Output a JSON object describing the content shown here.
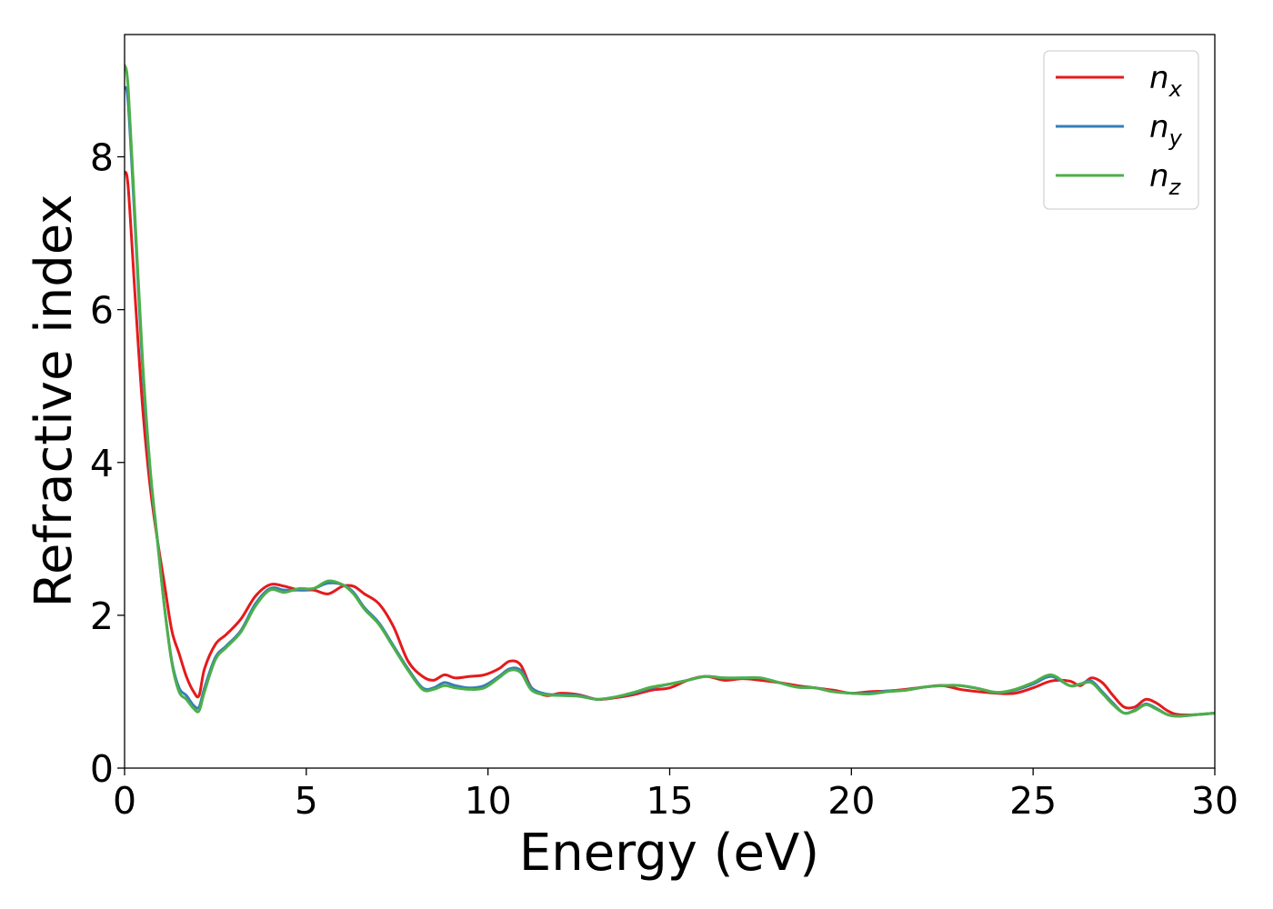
{
  "chart_data": {
    "type": "line",
    "xlabel": "Energy (eV)",
    "ylabel": "Refractive index",
    "xlim": [
      0,
      30
    ],
    "ylim": [
      0,
      9.6
    ],
    "xticks": [
      0,
      5,
      10,
      15,
      20,
      25,
      30
    ],
    "xtick_labels": [
      "0",
      "5",
      "10",
      "15",
      "20",
      "25",
      "30"
    ],
    "yticks": [
      0,
      2,
      4,
      6,
      8
    ],
    "ytick_labels": [
      "0",
      "2",
      "4",
      "6",
      "8"
    ],
    "grid": false,
    "legend_placement": "top-right",
    "series": [
      {
        "name": "n_x",
        "label_main": "n",
        "label_sub": "x",
        "color": "#e41a1c",
        "x": [
          0,
          0.1,
          0.3,
          0.5,
          0.7,
          0.9,
          1.1,
          1.3,
          1.5,
          1.7,
          1.9,
          2.05,
          2.2,
          2.5,
          2.8,
          3.2,
          3.6,
          4.0,
          4.4,
          4.8,
          5.2,
          5.6,
          6.0,
          6.3,
          6.6,
          7.0,
          7.4,
          7.8,
          8.2,
          8.5,
          8.8,
          9.1,
          9.5,
          9.9,
          10.3,
          10.6,
          10.9,
          11.2,
          11.6,
          12.0,
          12.5,
          13.0,
          13.5,
          14.0,
          14.5,
          15.0,
          15.5,
          16.0,
          16.5,
          17.0,
          17.5,
          18.0,
          18.5,
          19.0,
          19.5,
          20.0,
          20.5,
          21.0,
          21.5,
          22.0,
          22.5,
          23.0,
          23.5,
          24.0,
          24.5,
          25.0,
          25.5,
          26.0,
          26.3,
          26.6,
          26.9,
          27.2,
          27.5,
          27.8,
          28.1,
          28.4,
          28.7,
          29.0,
          29.5,
          30.0
        ],
        "y": [
          7.8,
          7.6,
          6.1,
          4.7,
          3.7,
          3.0,
          2.4,
          1.8,
          1.5,
          1.2,
          1.0,
          0.95,
          1.3,
          1.62,
          1.75,
          1.95,
          2.25,
          2.4,
          2.38,
          2.33,
          2.33,
          2.28,
          2.38,
          2.38,
          2.28,
          2.15,
          1.85,
          1.4,
          1.2,
          1.15,
          1.22,
          1.18,
          1.2,
          1.22,
          1.3,
          1.4,
          1.35,
          1.05,
          0.95,
          0.98,
          0.96,
          0.9,
          0.92,
          0.96,
          1.02,
          1.05,
          1.15,
          1.2,
          1.15,
          1.17,
          1.15,
          1.12,
          1.08,
          1.05,
          1.02,
          0.98,
          1.0,
          1.01,
          1.03,
          1.06,
          1.08,
          1.03,
          1.0,
          0.98,
          0.98,
          1.05,
          1.14,
          1.14,
          1.08,
          1.18,
          1.12,
          0.95,
          0.8,
          0.8,
          0.9,
          0.85,
          0.75,
          0.7,
          0.7,
          0.72
        ]
      },
      {
        "name": "n_y",
        "label_main": "n",
        "label_sub": "y",
        "color": "#377eb8",
        "x": [
          0,
          0.1,
          0.3,
          0.5,
          0.7,
          0.9,
          1.1,
          1.3,
          1.5,
          1.7,
          1.9,
          2.05,
          2.2,
          2.5,
          2.8,
          3.2,
          3.6,
          4.0,
          4.4,
          4.8,
          5.2,
          5.6,
          6.0,
          6.3,
          6.6,
          7.0,
          7.4,
          7.8,
          8.2,
          8.5,
          8.8,
          9.1,
          9.5,
          9.9,
          10.3,
          10.6,
          10.9,
          11.2,
          11.6,
          12.0,
          12.5,
          13.0,
          13.5,
          14.0,
          14.5,
          15.0,
          15.5,
          16.0,
          16.5,
          17.0,
          17.5,
          18.0,
          18.5,
          19.0,
          19.5,
          20.0,
          20.5,
          21.0,
          21.5,
          22.0,
          22.5,
          23.0,
          23.5,
          24.0,
          24.5,
          25.0,
          25.5,
          26.0,
          26.3,
          26.6,
          26.9,
          27.2,
          27.5,
          27.8,
          28.1,
          28.4,
          28.7,
          29.0,
          29.5,
          30.0
        ],
        "y": [
          8.9,
          8.7,
          7.0,
          5.2,
          3.9,
          3.0,
          2.1,
          1.4,
          1.05,
          0.95,
          0.82,
          0.8,
          1.05,
          1.45,
          1.6,
          1.8,
          2.15,
          2.35,
          2.33,
          2.33,
          2.35,
          2.42,
          2.4,
          2.3,
          2.1,
          1.9,
          1.6,
          1.3,
          1.05,
          1.05,
          1.12,
          1.08,
          1.05,
          1.08,
          1.2,
          1.3,
          1.28,
          1.05,
          0.97,
          0.96,
          0.95,
          0.9,
          0.93,
          0.98,
          1.05,
          1.1,
          1.15,
          1.2,
          1.18,
          1.18,
          1.18,
          1.12,
          1.06,
          1.05,
          1.0,
          0.98,
          0.98,
          1.01,
          1.02,
          1.06,
          1.08,
          1.08,
          1.04,
          0.99,
          1.02,
          1.1,
          1.2,
          1.08,
          1.1,
          1.14,
          1.0,
          0.85,
          0.72,
          0.76,
          0.84,
          0.78,
          0.7,
          0.68,
          0.7,
          0.72
        ]
      },
      {
        "name": "n_z",
        "label_main": "n",
        "label_sub": "z",
        "color": "#4daf4a",
        "x": [
          0,
          0.1,
          0.3,
          0.5,
          0.7,
          0.9,
          1.1,
          1.3,
          1.5,
          1.7,
          1.9,
          2.05,
          2.2,
          2.5,
          2.8,
          3.2,
          3.6,
          4.0,
          4.4,
          4.8,
          5.2,
          5.6,
          6.0,
          6.3,
          6.6,
          7.0,
          7.4,
          7.8,
          8.2,
          8.5,
          8.8,
          9.1,
          9.5,
          9.9,
          10.3,
          10.6,
          10.9,
          11.2,
          11.6,
          12.0,
          12.5,
          13.0,
          13.5,
          14.0,
          14.5,
          15.0,
          15.5,
          16.0,
          16.5,
          17.0,
          17.5,
          18.0,
          18.5,
          19.0,
          19.5,
          20.0,
          20.5,
          21.0,
          21.5,
          22.0,
          22.5,
          23.0,
          23.5,
          24.0,
          24.5,
          25.0,
          25.5,
          26.0,
          26.3,
          26.6,
          26.9,
          27.2,
          27.5,
          27.8,
          28.1,
          28.4,
          28.7,
          29.0,
          29.5,
          30.0
        ],
        "y": [
          9.2,
          8.9,
          7.1,
          5.3,
          3.95,
          3.0,
          2.1,
          1.38,
          1.0,
          0.9,
          0.78,
          0.75,
          1.0,
          1.42,
          1.58,
          1.78,
          2.12,
          2.33,
          2.3,
          2.35,
          2.35,
          2.45,
          2.4,
          2.28,
          2.08,
          1.88,
          1.58,
          1.28,
          1.03,
          1.03,
          1.08,
          1.05,
          1.03,
          1.05,
          1.18,
          1.28,
          1.25,
          1.02,
          0.96,
          0.95,
          0.94,
          0.9,
          0.93,
          0.99,
          1.06,
          1.1,
          1.15,
          1.2,
          1.18,
          1.18,
          1.18,
          1.12,
          1.06,
          1.05,
          1.0,
          0.98,
          0.97,
          1.0,
          1.02,
          1.06,
          1.08,
          1.08,
          1.04,
          0.99,
          1.03,
          1.12,
          1.22,
          1.08,
          1.1,
          1.12,
          0.98,
          0.83,
          0.72,
          0.75,
          0.83,
          0.77,
          0.7,
          0.68,
          0.7,
          0.72
        ]
      }
    ]
  }
}
